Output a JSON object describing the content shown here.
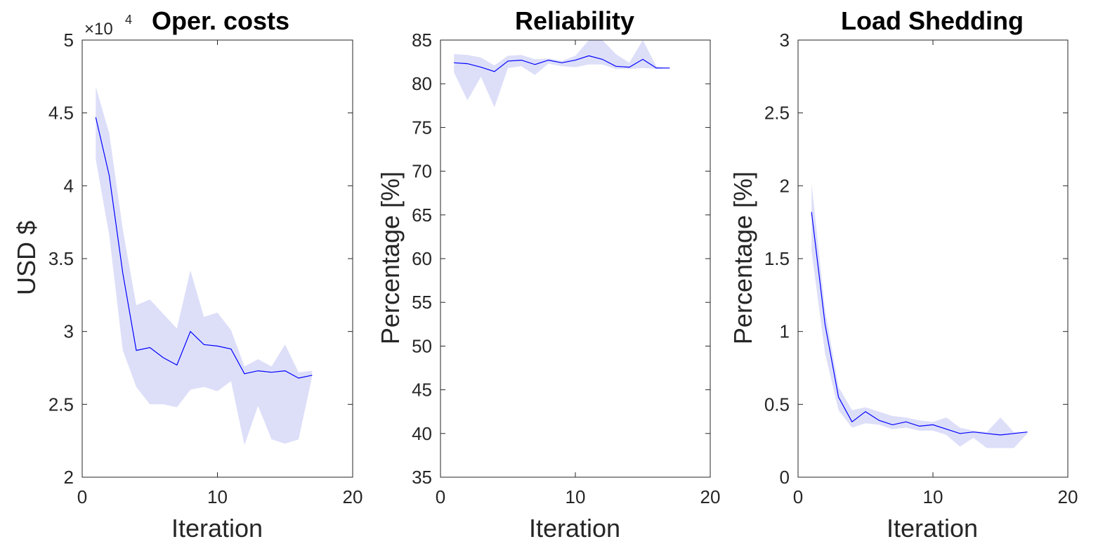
{
  "chart_data": [
    {
      "type": "line",
      "title": "Oper. costs",
      "xlabel": "Iteration",
      "ylabel": "USD $",
      "xlim": [
        0,
        20
      ],
      "ylim": [
        2,
        5
      ],
      "xticks": [
        0,
        10,
        20
      ],
      "yticks": [
        2,
        2.5,
        3,
        3.5,
        4,
        4.5,
        5
      ],
      "ytick_labels": [
        "2",
        "2.5",
        "3",
        "3.5",
        "4",
        "4.5",
        "5"
      ],
      "y_multiplier": {
        "base": "×10",
        "exponent": "4"
      },
      "line_color": "#0000ff",
      "band_color": "#dddff9",
      "x": [
        1,
        2,
        3,
        4,
        5,
        6,
        7,
        8,
        9,
        10,
        11,
        12,
        13,
        14,
        15,
        16,
        17
      ],
      "series": [
        {
          "name": "mean",
          "values": [
            4.47,
            4.07,
            3.4,
            2.87,
            2.89,
            2.82,
            2.77,
            3.0,
            2.91,
            2.9,
            2.88,
            2.71,
            2.73,
            2.72,
            2.73,
            2.68,
            2.7
          ]
        },
        {
          "name": "upper",
          "values": [
            4.68,
            4.36,
            3.7,
            3.18,
            3.22,
            3.12,
            3.02,
            3.42,
            3.1,
            3.13,
            3.01,
            2.76,
            2.81,
            2.76,
            2.91,
            2.72,
            2.73
          ]
        },
        {
          "name": "lower",
          "values": [
            4.18,
            3.66,
            2.87,
            2.62,
            2.5,
            2.5,
            2.48,
            2.6,
            2.62,
            2.59,
            2.66,
            2.22,
            2.49,
            2.26,
            2.23,
            2.26,
            2.69
          ]
        }
      ]
    },
    {
      "type": "line",
      "title": "Reliability",
      "xlabel": "Iteration",
      "ylabel": "Percentage [%]",
      "xlim": [
        0,
        20
      ],
      "ylim": [
        35,
        85
      ],
      "xticks": [
        0,
        10,
        20
      ],
      "yticks": [
        35,
        40,
        45,
        50,
        55,
        60,
        65,
        70,
        75,
        80,
        85
      ],
      "ytick_labels": [
        "35",
        "40",
        "45",
        "50",
        "55",
        "60",
        "65",
        "70",
        "75",
        "80",
        "85"
      ],
      "line_color": "#0000ff",
      "band_color": "#dddff9",
      "x": [
        1,
        2,
        3,
        4,
        5,
        6,
        7,
        8,
        9,
        10,
        11,
        12,
        13,
        14,
        15,
        16,
        17
      ],
      "series": [
        {
          "name": "mean",
          "values": [
            82.4,
            82.3,
            81.9,
            81.4,
            82.6,
            82.7,
            82.2,
            82.7,
            82.4,
            82.7,
            83.2,
            82.8,
            82.0,
            81.9,
            82.8,
            81.8,
            81.8
          ]
        },
        {
          "name": "upper",
          "values": [
            83.4,
            83.3,
            83.0,
            82.1,
            83.2,
            83.3,
            82.8,
            82.9,
            82.6,
            83.2,
            85.0,
            85.0,
            83.4,
            82.4,
            85.0,
            82.0,
            81.8
          ]
        },
        {
          "name": "lower",
          "values": [
            81.3,
            78.1,
            80.8,
            77.3,
            81.8,
            82.0,
            81.0,
            82.3,
            82.0,
            81.9,
            82.2,
            82.2,
            81.7,
            81.7,
            81.8,
            81.7,
            81.8
          ]
        }
      ]
    },
    {
      "type": "line",
      "title": "Load Shedding",
      "xlabel": "Iteration",
      "ylabel": "Percentage [%]",
      "xlim": [
        0,
        20
      ],
      "ylim": [
        0,
        3
      ],
      "xticks": [
        0,
        10,
        20
      ],
      "yticks": [
        0,
        0.5,
        1,
        1.5,
        2,
        2.5,
        3
      ],
      "ytick_labels": [
        "0",
        "0.5",
        "1",
        "1.5",
        "2",
        "2.5",
        "3"
      ],
      "line_color": "#0000ff",
      "band_color": "#dddff9",
      "x": [
        1,
        2,
        3,
        4,
        5,
        6,
        7,
        8,
        9,
        10,
        11,
        12,
        13,
        14,
        15,
        16,
        17
      ],
      "series": [
        {
          "name": "mean",
          "values": [
            1.82,
            1.05,
            0.55,
            0.38,
            0.45,
            0.39,
            0.36,
            0.38,
            0.35,
            0.36,
            0.33,
            0.3,
            0.31,
            0.3,
            0.29,
            0.3,
            0.31
          ]
        },
        {
          "name": "upper",
          "values": [
            2.02,
            1.15,
            0.62,
            0.46,
            0.48,
            0.45,
            0.42,
            0.41,
            0.39,
            0.38,
            0.41,
            0.34,
            0.32,
            0.31,
            0.41,
            0.31,
            0.31
          ]
        },
        {
          "name": "lower",
          "values": [
            1.55,
            0.85,
            0.46,
            0.34,
            0.37,
            0.36,
            0.33,
            0.34,
            0.32,
            0.32,
            0.29,
            0.21,
            0.27,
            0.2,
            0.2,
            0.2,
            0.3
          ]
        }
      ]
    }
  ]
}
